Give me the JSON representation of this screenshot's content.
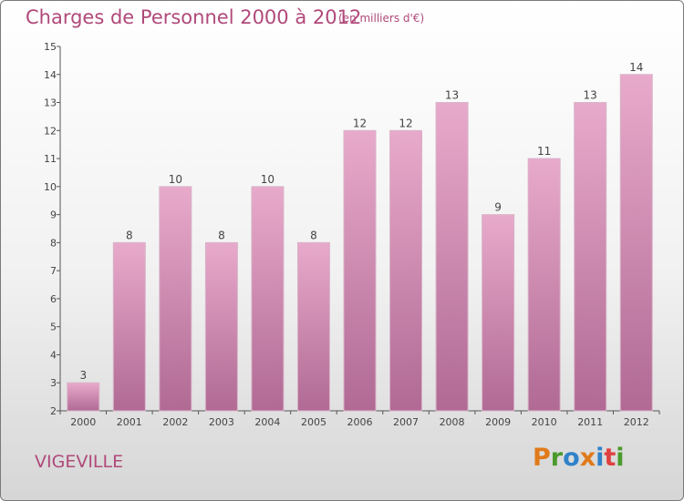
{
  "chart_data": {
    "type": "bar",
    "title": "Charges de Personnel 2000 à 2012",
    "subtitle": "(en milliers d'€)",
    "categories": [
      "2000",
      "2001",
      "2002",
      "2003",
      "2004",
      "2005",
      "2006",
      "2007",
      "2008",
      "2009",
      "2010",
      "2011",
      "2012"
    ],
    "values": [
      3,
      8,
      10,
      8,
      10,
      8,
      12,
      12,
      13,
      9,
      11,
      13,
      14
    ],
    "ylim": [
      2,
      15
    ],
    "yticks": [
      2,
      3,
      4,
      5,
      6,
      7,
      8,
      9,
      10,
      11,
      12,
      13,
      14,
      15
    ],
    "grid": false,
    "colors": {
      "bar_top": "#e8aacb",
      "bar_bottom": "#b06a94",
      "text": "#b0497a"
    }
  },
  "footer": {
    "place": "VIGEVILLE",
    "logo_text": "Proxiti",
    "logo_colors": [
      "#e07a1a",
      "#4a9a2c",
      "#2f82c9",
      "#e07a1a",
      "#2f82c9",
      "#e04040",
      "#4a9a2c"
    ]
  }
}
